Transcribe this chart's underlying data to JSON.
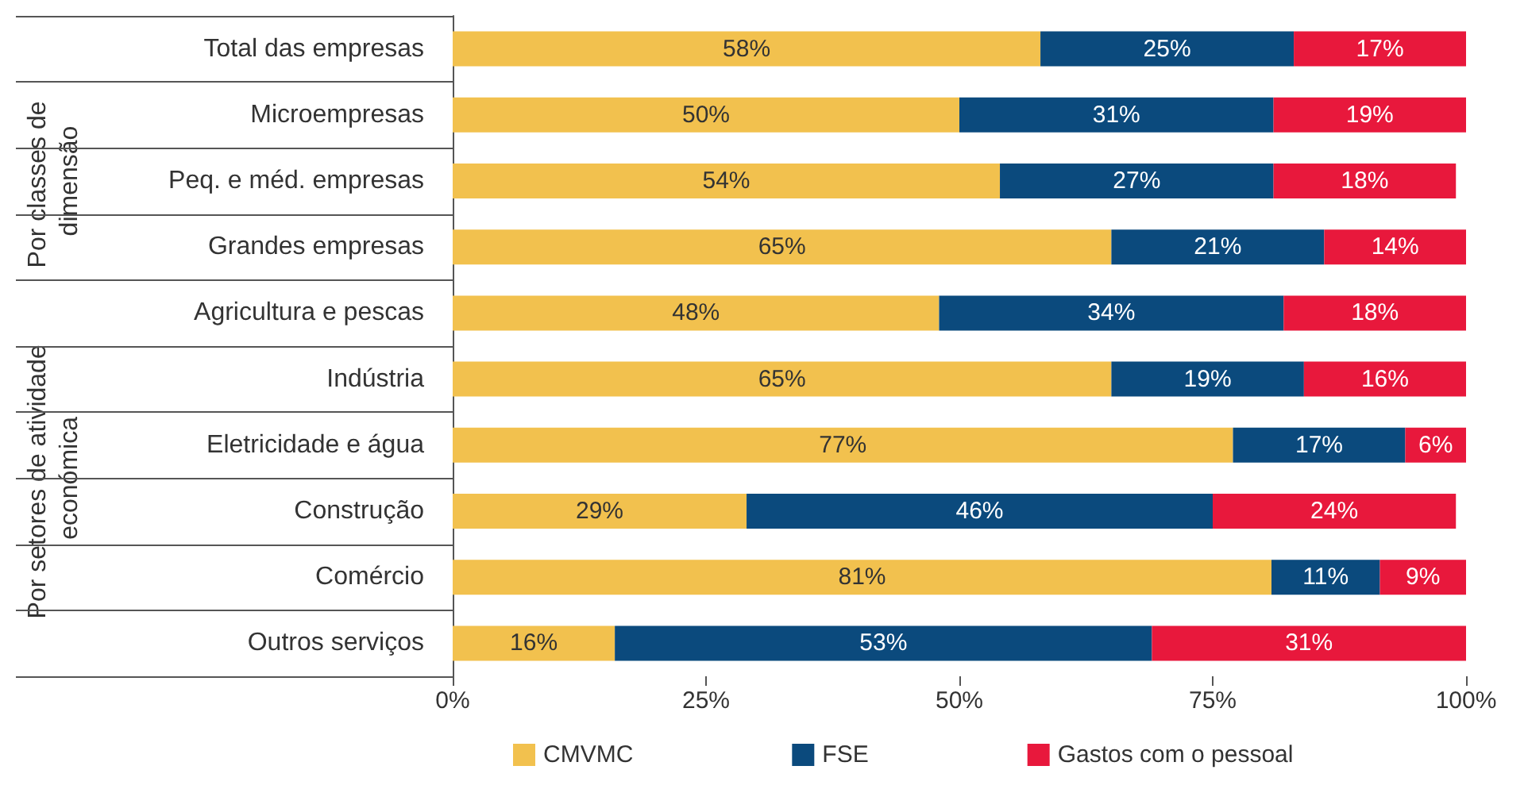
{
  "chart_data": {
    "type": "bar",
    "orientation": "horizontal",
    "stacked": true,
    "categories": [
      "Total das empresas",
      "Microempresas",
      "Peq. e méd. empresas",
      "Grandes empresas",
      "Agricultura e pescas",
      "Indústria",
      "Eletricidade e água",
      "Construção",
      "Comércio",
      "Outros serviços"
    ],
    "series": [
      {
        "name": "CMVMC",
        "color": "#f2c14e",
        "values": [
          58,
          50,
          54,
          65,
          48,
          65,
          77,
          29,
          80.8,
          16
        ],
        "value_labels": [
          "58%",
          "50%",
          "54%",
          "65%",
          "48%",
          "65%",
          "77%",
          "29%",
          "81%",
          "16%"
        ]
      },
      {
        "name": "FSE",
        "color": "#0b4a7d",
        "values": [
          25,
          31,
          27,
          21,
          34,
          19,
          17,
          46,
          10.7,
          53
        ],
        "value_labels": [
          "25%",
          "31%",
          "27%",
          "21%",
          "34%",
          "19%",
          "17%",
          "46%",
          "11%",
          "53%"
        ]
      },
      {
        "name": "Gastos com o pessoal",
        "color": "#e8183c",
        "values": [
          17,
          19,
          18,
          14,
          18,
          16,
          6,
          24,
          8.5,
          31
        ],
        "value_labels": [
          "17%",
          "19%",
          "18%",
          "14%",
          "18%",
          "16%",
          "6%",
          "24%",
          "9%",
          "31%"
        ]
      }
    ],
    "xlim": [
      0,
      100
    ],
    "xticks": [
      {
        "value": 0,
        "label": "0%"
      },
      {
        "value": 25,
        "label": "25%"
      },
      {
        "value": 50,
        "label": "50%"
      },
      {
        "value": 75,
        "label": "75%"
      },
      {
        "value": 100,
        "label": "100%"
      }
    ],
    "annotations": [
      "Por classes de dimensão",
      "Por setores de atividade económica"
    ],
    "grid": false,
    "legend": "bottom"
  }
}
